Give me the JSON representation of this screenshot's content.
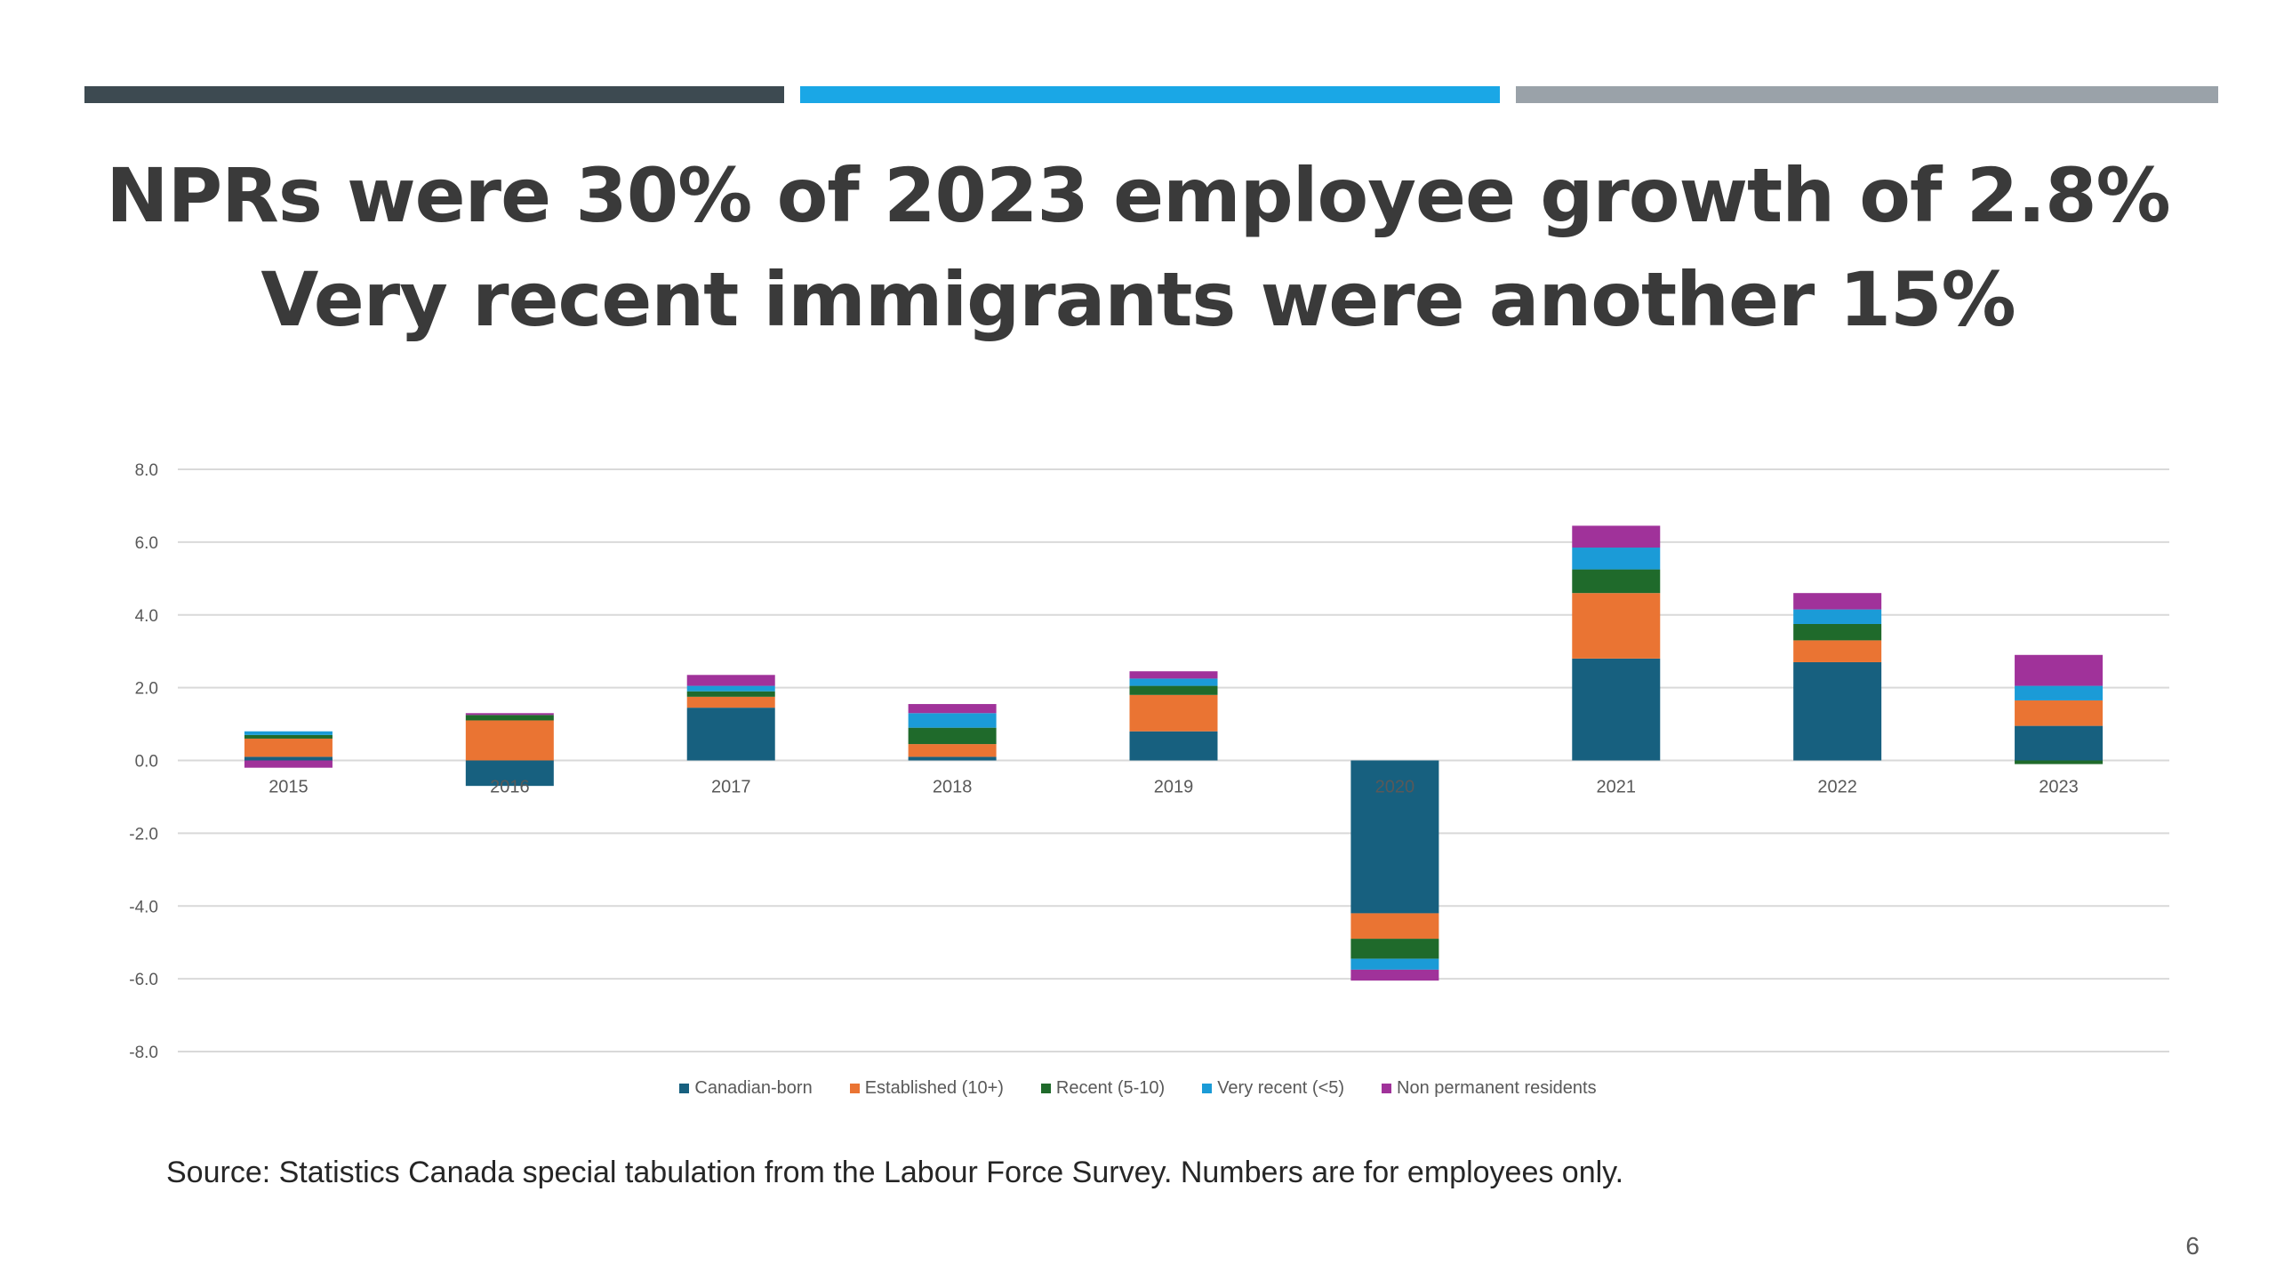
{
  "slide": {
    "accent_colors": [
      "#3d4a51",
      "#1aa7e6",
      "#9aa2a9"
    ],
    "title_line_1": "NPRs were 30% of 2023 employee growth of 2.8%",
    "title_line_2": "Very recent immigrants were another 15%",
    "source": "Source: Statistics Canada special tabulation from the Labour Force Survey. Numbers are for employees only.",
    "page_number": "6"
  },
  "chart_data": {
    "type": "bar",
    "stacked": true,
    "title": "",
    "xlabel": "",
    "ylabel": "",
    "ylim": [
      -8.0,
      8.0
    ],
    "y_ticks": [
      "8.0",
      "6.0",
      "4.0",
      "2.0",
      "0.0",
      "-2.0",
      "-4.0",
      "-6.0",
      "-8.0"
    ],
    "grid": true,
    "legend_position": "bottom",
    "categories": [
      "2015",
      "2016",
      "2017",
      "2018",
      "2019",
      "2020",
      "2021",
      "2022",
      "2023"
    ],
    "series": [
      {
        "name": "Canadian-born",
        "color": "#17607f",
        "values": [
          0.1,
          -0.7,
          1.45,
          0.1,
          0.8,
          -4.2,
          2.8,
          2.7,
          0.95
        ]
      },
      {
        "name": "Established (10+)",
        "color": "#ea7433",
        "values": [
          0.5,
          1.1,
          0.3,
          0.35,
          1.0,
          -0.7,
          1.8,
          0.6,
          0.7
        ]
      },
      {
        "name": "Recent (5-10)",
        "color": "#1f6a2b",
        "values": [
          0.1,
          0.15,
          0.15,
          0.45,
          0.25,
          -0.55,
          0.65,
          0.45,
          -0.1
        ]
      },
      {
        "name": "Very recent (<5)",
        "color": "#1b9bd7",
        "values": [
          0.1,
          0.0,
          0.15,
          0.4,
          0.2,
          -0.3,
          0.6,
          0.4,
          0.4
        ]
      },
      {
        "name": "Non permanent residents",
        "color": "#a0329a",
        "values": [
          -0.2,
          0.05,
          0.3,
          0.25,
          0.2,
          -0.3,
          0.6,
          0.45,
          0.85
        ]
      }
    ]
  }
}
